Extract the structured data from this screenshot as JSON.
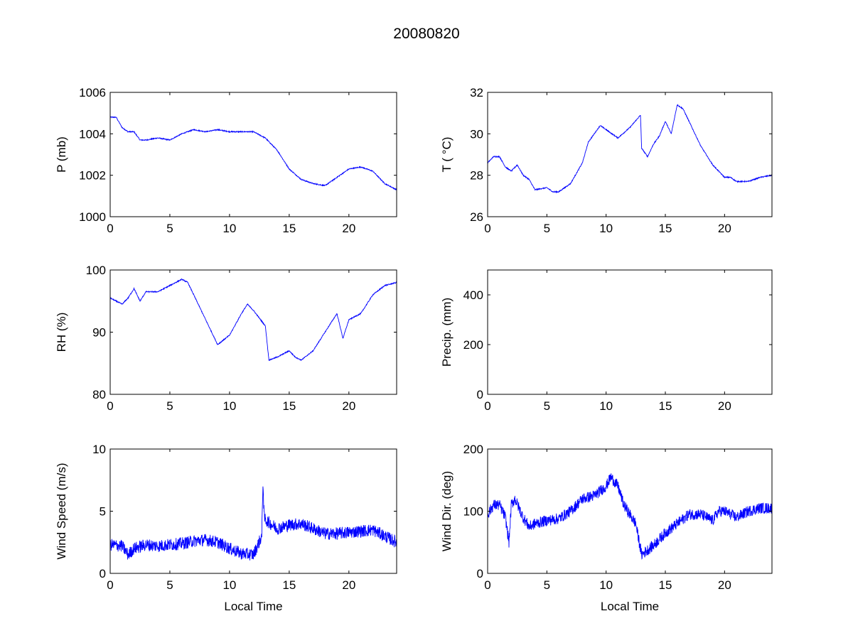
{
  "chart_data": [
    {
      "type": "line",
      "title": "20080820",
      "panel": "pressure",
      "xlabel": "",
      "ylabel": "P (mb)",
      "xlim": [
        0,
        24
      ],
      "ylim": [
        1000,
        1006
      ],
      "xticks": [
        0,
        5,
        10,
        15,
        20
      ],
      "yticks": [
        1000,
        1002,
        1004,
        1006
      ],
      "x": [
        0,
        0.5,
        1,
        1.5,
        2,
        2.5,
        3,
        4,
        5,
        6,
        7,
        8,
        9,
        10,
        11,
        12,
        13,
        14,
        15,
        16,
        17,
        18,
        19,
        20,
        21,
        22,
        23,
        24
      ],
      "y": [
        1004.8,
        1004.8,
        1004.3,
        1004.1,
        1004.1,
        1003.7,
        1003.7,
        1003.8,
        1003.7,
        1004.0,
        1004.2,
        1004.1,
        1004.2,
        1004.1,
        1004.1,
        1004.1,
        1003.8,
        1003.2,
        1002.3,
        1001.8,
        1001.6,
        1001.5,
        1001.9,
        1002.3,
        1002.4,
        1002.2,
        1001.6,
        1001.3
      ]
    },
    {
      "type": "line",
      "panel": "temperature",
      "xlabel": "",
      "ylabel": "T ( °C)",
      "xlim": [
        0,
        24
      ],
      "ylim": [
        26,
        32
      ],
      "xticks": [
        0,
        5,
        10,
        15,
        20
      ],
      "yticks": [
        26,
        28,
        30,
        32
      ],
      "x": [
        0,
        0.5,
        1,
        1.5,
        2,
        2.5,
        3,
        3.5,
        4,
        5,
        5.5,
        6,
        7,
        8,
        8.5,
        9,
        9.5,
        10,
        11,
        12,
        12.9,
        13,
        13.5,
        14,
        14.5,
        15,
        15.5,
        16,
        16.5,
        17,
        18,
        19,
        20,
        20.5,
        21,
        22,
        23,
        24
      ],
      "y": [
        28.6,
        28.9,
        28.9,
        28.4,
        28.2,
        28.5,
        28.0,
        27.8,
        27.3,
        27.4,
        27.2,
        27.2,
        27.6,
        28.6,
        29.6,
        30.0,
        30.4,
        30.2,
        29.8,
        30.3,
        30.9,
        29.3,
        28.9,
        29.5,
        29.9,
        30.6,
        30.0,
        31.4,
        31.2,
        30.6,
        29.4,
        28.5,
        27.9,
        27.9,
        27.7,
        27.7,
        27.9,
        28.0
      ]
    },
    {
      "type": "line",
      "panel": "humidity",
      "xlabel": "",
      "ylabel": "RH (%)",
      "xlim": [
        0,
        24
      ],
      "ylim": [
        80,
        100
      ],
      "xticks": [
        0,
        5,
        10,
        15,
        20
      ],
      "yticks": [
        80,
        90,
        100
      ],
      "x": [
        0,
        1,
        1.5,
        2,
        2.5,
        3,
        4,
        5,
        6,
        6.5,
        7,
        8,
        9,
        10,
        11,
        11.5,
        12,
        13,
        13.3,
        14,
        15,
        15.5,
        16,
        17,
        18,
        19,
        19.5,
        20,
        21,
        22,
        23,
        24
      ],
      "y": [
        95.5,
        94.5,
        95.5,
        97,
        95,
        96.5,
        96.5,
        97.5,
        98.5,
        98,
        96,
        92,
        88,
        89.5,
        93,
        94.5,
        93.5,
        91,
        85.5,
        86,
        87,
        86,
        85.5,
        87,
        90,
        93,
        89,
        92,
        93,
        96,
        97.5,
        98
      ]
    },
    {
      "type": "line",
      "panel": "precipitation",
      "xlabel": "",
      "ylabel": "Precip. (mm)",
      "xlim": [
        0,
        24
      ],
      "ylim": [
        0,
        500
      ],
      "xticks": [
        0,
        5,
        10,
        15,
        20
      ],
      "yticks": [
        0,
        200,
        400
      ],
      "x": [],
      "y": []
    },
    {
      "type": "line",
      "panel": "wind-speed",
      "xlabel": "Local Time",
      "ylabel": "Wind Speed (m/s)",
      "xlim": [
        0,
        24
      ],
      "ylim": [
        0,
        10
      ],
      "xticks": [
        0,
        5,
        10,
        15,
        20
      ],
      "yticks": [
        0,
        5,
        10
      ],
      "x": [
        0,
        1,
        1.5,
        2,
        3,
        4,
        5,
        6,
        7,
        8,
        9,
        10,
        11,
        12,
        12.7,
        12.8,
        12.9,
        13,
        14,
        15,
        16,
        17,
        18,
        19,
        20,
        21,
        22,
        23,
        24
      ],
      "y": [
        2.3,
        2.2,
        1.5,
        2.0,
        2.3,
        2.2,
        2.3,
        2.4,
        2.6,
        2.7,
        2.5,
        2.0,
        1.6,
        1.5,
        3.0,
        7.4,
        4.5,
        4.3,
        3.6,
        3.9,
        4.0,
        3.6,
        3.2,
        3.2,
        3.3,
        3.4,
        3.5,
        3.0,
        2.5
      ],
      "noise": 0.5
    },
    {
      "type": "line",
      "panel": "wind-direction",
      "xlabel": "Local Time",
      "ylabel": "Wind Dir. (deg)",
      "xlim": [
        0,
        24
      ],
      "ylim": [
        0,
        200
      ],
      "xticks": [
        0,
        5,
        10,
        15,
        20
      ],
      "yticks": [
        0,
        100,
        200
      ],
      "x": [
        0,
        0.5,
        1,
        1.5,
        1.8,
        2,
        2.3,
        3,
        3.5,
        4,
        5,
        6,
        7,
        8,
        9,
        10,
        10.4,
        11,
        11.5,
        12,
        12.5,
        13,
        14,
        15,
        16,
        17,
        18,
        19,
        19.5,
        20,
        21,
        22,
        23,
        24
      ],
      "y": [
        95,
        110,
        110,
        90,
        50,
        110,
        120,
        90,
        75,
        80,
        85,
        88,
        100,
        120,
        125,
        140,
        155,
        140,
        110,
        95,
        80,
        30,
        45,
        65,
        80,
        95,
        95,
        85,
        100,
        100,
        90,
        100,
        105,
        105
      ],
      "noise": 9
    }
  ],
  "colors": {
    "series": "#0000ff",
    "axes": "#000000"
  }
}
